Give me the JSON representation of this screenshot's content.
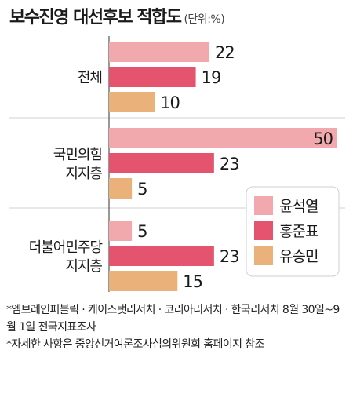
{
  "title": "보수진영 대선후보 적합도",
  "subtitle": "(단위:%)",
  "chart_data": {
    "type": "bar",
    "orientation": "horizontal",
    "categories": [
      "전체",
      "국민의힘\n지지층",
      "더불어민주당\n지지층"
    ],
    "series": [
      {
        "name": "윤석열",
        "color": "#f2a9ae",
        "values": [
          22,
          50,
          5
        ]
      },
      {
        "name": "홍준표",
        "color": "#e5546f",
        "values": [
          19,
          23,
          23
        ]
      },
      {
        "name": "유승민",
        "color": "#eab17a",
        "values": [
          10,
          5,
          15
        ]
      }
    ],
    "xlim": [
      0,
      50
    ],
    "legend_position": "right",
    "grid": false
  },
  "notes": [
    "*엠브레인퍼블릭 · 케이스탯리서치 · 코리아리서치 · 한국리서치 8월 30일~9월 1일 전국지표조사",
    "*자세한 사항은 중앙선거여론조사심의위원회 홈페이지 참조"
  ]
}
